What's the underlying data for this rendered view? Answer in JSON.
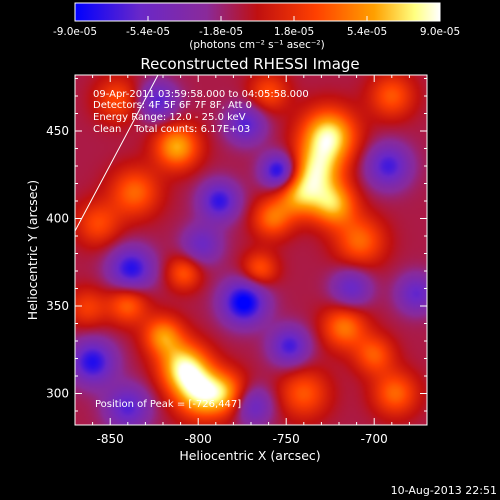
{
  "chart_data": {
    "type": "heatmap",
    "title": "Reconstructed RHESSI Image",
    "xlabel": "Heliocentric X (arcsec)",
    "ylabel": "Heliocentric Y (arcsec)",
    "xlim": [
      -870,
      -670
    ],
    "ylim": [
      282,
      482
    ],
    "x_ticks": [
      -850,
      -800,
      -750,
      -700
    ],
    "x_tick_labels": [
      "-850",
      "-800",
      "-750",
      "-700"
    ],
    "y_ticks": [
      300,
      350,
      400,
      450
    ],
    "y_tick_labels": [
      "300",
      "350",
      "400",
      "450"
    ],
    "colorbar": {
      "ticks": [
        -9e-05,
        -5.4e-05,
        -1.8e-05,
        1.8e-05,
        5.4e-05,
        9e-05
      ],
      "tick_labels": [
        "-9.0e-05",
        "-5.4e-05",
        "-1.8e-05",
        "1.8e-05",
        "5.4e-05",
        "9.0e-05"
      ],
      "label": "(photons cm⁻² s⁻¹ asec⁻²)",
      "colormap": [
        "#0000ff",
        "#6a28c8",
        "#8a2a9a",
        "#c01010",
        "#ff4000",
        "#ffa000",
        "#ffff80",
        "#ffffff"
      ]
    },
    "annotations": {
      "line1": "09-Apr-2011 03:59:58.000 to 04:05:58.000",
      "line2": "Detectors: 4F 5F 6F 7F 8F, Att 0",
      "line3": "Energy Range: 12.0 - 25.0 keV",
      "line4": "Clean    Total counts: 6.17E+03",
      "peak": "Position of Peak = [-726,447]"
    },
    "footer": "10-Aug-2013 22:51",
    "blobs": [
      {
        "x": -726,
        "y": 447,
        "w": 9e-05,
        "s": 11
      },
      {
        "x": -733,
        "y": 427,
        "w": 7e-05,
        "s": 10
      },
      {
        "x": -723,
        "y": 408,
        "w": 7e-05,
        "s": 9
      },
      {
        "x": -743,
        "y": 413,
        "w": 6e-05,
        "s": 9
      },
      {
        "x": -708,
        "y": 387,
        "w": 5e-05,
        "s": 10
      },
      {
        "x": -758,
        "y": 400,
        "w": 5e-05,
        "s": 8
      },
      {
        "x": -808,
        "y": 315,
        "w": 8.5e-05,
        "s": 10
      },
      {
        "x": -799,
        "y": 300,
        "w": 7.5e-05,
        "s": 10
      },
      {
        "x": -820,
        "y": 333,
        "w": 6e-05,
        "s": 8
      },
      {
        "x": -784,
        "y": 300,
        "w": 5.5e-05,
        "s": 9
      },
      {
        "x": -812,
        "y": 441,
        "w": 7e-05,
        "s": 9
      },
      {
        "x": -836,
        "y": 415,
        "w": 5e-05,
        "s": 10
      },
      {
        "x": -857,
        "y": 397,
        "w": 4e-05,
        "s": 9
      },
      {
        "x": -840,
        "y": 351,
        "w": 5e-05,
        "s": 8
      },
      {
        "x": -808,
        "y": 369,
        "w": 4.5e-05,
        "s": 7
      },
      {
        "x": -765,
        "y": 371,
        "w": 4.5e-05,
        "s": 7
      },
      {
        "x": -717,
        "y": 338,
        "w": 5.5e-05,
        "s": 9
      },
      {
        "x": -740,
        "y": 300,
        "w": 4.5e-05,
        "s": 10
      },
      {
        "x": -690,
        "y": 470,
        "w": 4.5e-05,
        "s": 9
      },
      {
        "x": -688,
        "y": 300,
        "w": 5e-05,
        "s": 9
      },
      {
        "x": -700,
        "y": 322,
        "w": 4.5e-05,
        "s": 8
      },
      {
        "x": -760,
        "y": 472,
        "w": 4e-05,
        "s": 8
      },
      {
        "x": -846,
        "y": 468,
        "w": 4e-05,
        "s": 9
      },
      {
        "x": -863,
        "y": 349,
        "w": 3.5e-05,
        "s": 8
      },
      {
        "x": -754,
        "y": 427,
        "w": -8e-05,
        "s": 7
      },
      {
        "x": -788,
        "y": 410,
        "w": -6.5e-05,
        "s": 8
      },
      {
        "x": -774,
        "y": 352,
        "w": -8.5e-05,
        "s": 9
      },
      {
        "x": -838,
        "y": 371,
        "w": -7e-05,
        "s": 9
      },
      {
        "x": -860,
        "y": 318,
        "w": -7e-05,
        "s": 9
      },
      {
        "x": -840,
        "y": 292,
        "w": -5.5e-05,
        "s": 9
      },
      {
        "x": -748,
        "y": 327,
        "w": -6e-05,
        "s": 8
      },
      {
        "x": -692,
        "y": 430,
        "w": -6e-05,
        "s": 9
      },
      {
        "x": -773,
        "y": 454,
        "w": -5.5e-05,
        "s": 8
      },
      {
        "x": -823,
        "y": 467,
        "w": -5.5e-05,
        "s": 8
      },
      {
        "x": -713,
        "y": 360,
        "w": -5e-05,
        "s": 8
      },
      {
        "x": -676,
        "y": 357,
        "w": -5e-05,
        "s": 8
      },
      {
        "x": -798,
        "y": 385,
        "w": -4.5e-05,
        "s": 8
      },
      {
        "x": -769,
        "y": 293,
        "w": -5e-05,
        "s": 8
      }
    ]
  }
}
